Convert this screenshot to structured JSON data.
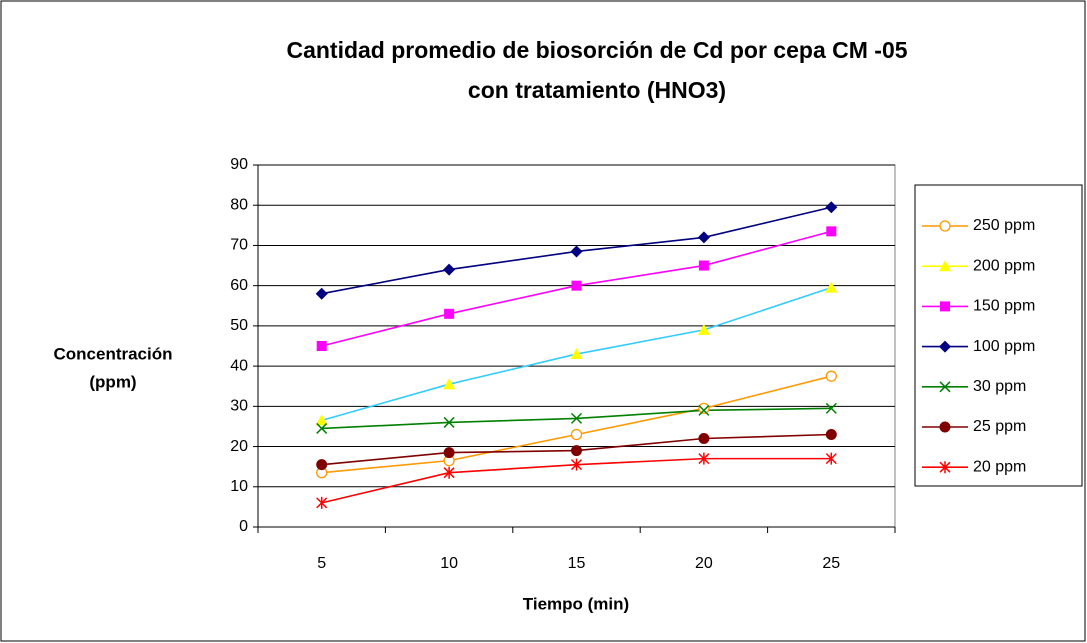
{
  "chart_data": {
    "type": "line",
    "title": [
      "Cantidad promedio de biosorción de Cd por cepa  CM -05",
      "con tratamiento (HNO3)"
    ],
    "x_label": "Tiempo (min)",
    "y_label": [
      "Concentración",
      "(ppm)"
    ],
    "categories": [
      5,
      10,
      15,
      20,
      25
    ],
    "ylim": [
      0,
      90
    ],
    "yticks": [
      0,
      10,
      20,
      30,
      40,
      50,
      60,
      70,
      80,
      90
    ],
    "grid": true,
    "legend": "right",
    "series": [
      {
        "name": "250 ppm",
        "color": "#ff9900",
        "line_color": "#ff9900",
        "marker": "open-circle",
        "values": [
          13.5,
          16.5,
          23,
          29.5,
          37.5
        ]
      },
      {
        "name": "200 ppm",
        "color": "#ffff00",
        "line_color": "#33ccff",
        "marker": "triangle",
        "values": [
          26.5,
          35.5,
          43,
          49,
          59.5
        ]
      },
      {
        "name": "150 ppm",
        "color": "#ff00ff",
        "line_color": "#ff00ff",
        "marker": "square",
        "values": [
          45,
          53,
          60,
          65,
          73.5
        ]
      },
      {
        "name": "100 ppm",
        "color": "#000080",
        "line_color": "#000080",
        "marker": "diamond",
        "values": [
          58,
          64,
          68.5,
          72,
          79.5
        ]
      },
      {
        "name": "30 ppm",
        "color": "#008000",
        "line_color": "#008000",
        "marker": "x",
        "values": [
          24.5,
          26,
          27,
          29,
          29.5
        ]
      },
      {
        "name": "25 ppm",
        "color": "#800000",
        "line_color": "#800000",
        "marker": "circle",
        "values": [
          15.5,
          18.5,
          19,
          22,
          23
        ]
      },
      {
        "name": "20 ppm",
        "color": "#ff0000",
        "line_color": "#ff0000",
        "marker": "star",
        "values": [
          6,
          13.5,
          15.5,
          17,
          17
        ]
      }
    ]
  }
}
